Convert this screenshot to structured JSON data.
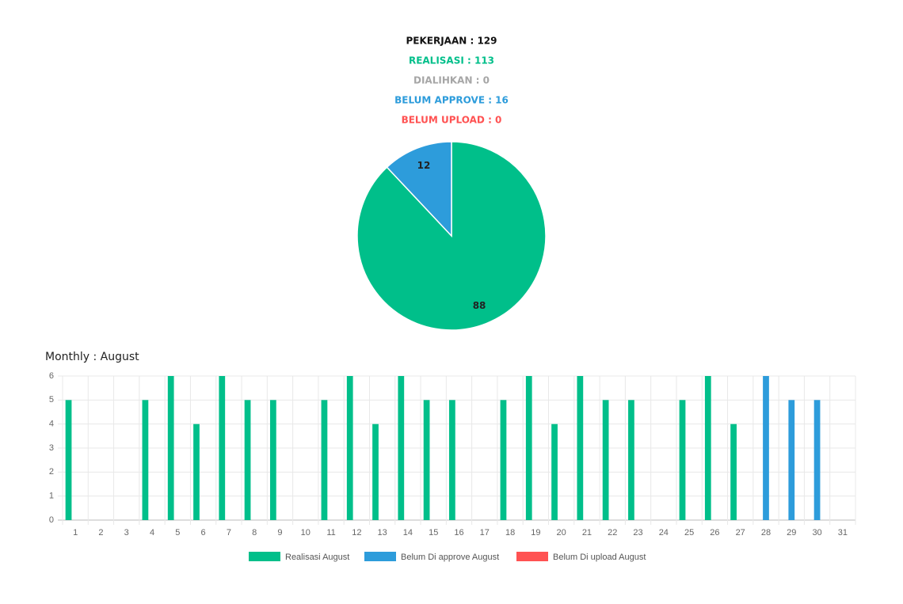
{
  "chart_data": [
    {
      "type": "pie",
      "annotations": [
        {
          "text": "PEKERJAAN : 129",
          "color": "#111111"
        },
        {
          "text": "REALISASI : 113",
          "color": "#00bf8a"
        },
        {
          "text": "DIALIHKAN : 0",
          "color": "#a6a6a6"
        },
        {
          "text": "BELUM APPROVE : 16",
          "color": "#2d9cdb"
        },
        {
          "text": "BELUM UPLOAD : 0",
          "color": "#ff5252"
        }
      ],
      "values": [
        88,
        12
      ],
      "colors": [
        "#00bf8a",
        "#2d9cdb"
      ]
    },
    {
      "type": "bar",
      "title": "Monthly : August",
      "categories": [
        "1",
        "2",
        "3",
        "4",
        "5",
        "6",
        "7",
        "8",
        "9",
        "10",
        "11",
        "12",
        "13",
        "14",
        "15",
        "16",
        "17",
        "18",
        "19",
        "20",
        "21",
        "22",
        "23",
        "24",
        "25",
        "26",
        "27",
        "28",
        "29",
        "30",
        "31"
      ],
      "series": [
        {
          "name": "Realisasi August",
          "color": "#00bf8a",
          "values": [
            5,
            0,
            0,
            5,
            6,
            4,
            6,
            5,
            5,
            0,
            5,
            6,
            4,
            6,
            5,
            5,
            0,
            5,
            6,
            4,
            6,
            5,
            5,
            0,
            5,
            6,
            4,
            0,
            0,
            0,
            0
          ]
        },
        {
          "name": "Belum Di approve August",
          "color": "#2d9cdb",
          "values": [
            0,
            0,
            0,
            0,
            0,
            0,
            0,
            0,
            0,
            0,
            0,
            0,
            0,
            0,
            0,
            0,
            0,
            0,
            0,
            0,
            0,
            0,
            0,
            0,
            0,
            0,
            0,
            6,
            5,
            5,
            0
          ]
        },
        {
          "name": "Belum Di upload August",
          "color": "#ff5252",
          "values": [
            0,
            0,
            0,
            0,
            0,
            0,
            0,
            0,
            0,
            0,
            0,
            0,
            0,
            0,
            0,
            0,
            0,
            0,
            0,
            0,
            0,
            0,
            0,
            0,
            0,
            0,
            0,
            0,
            0,
            0,
            0
          ]
        }
      ],
      "ylim": [
        0,
        6
      ],
      "yticks": [
        0,
        1,
        2,
        3,
        4,
        5,
        6
      ],
      "grid": true
    }
  ]
}
